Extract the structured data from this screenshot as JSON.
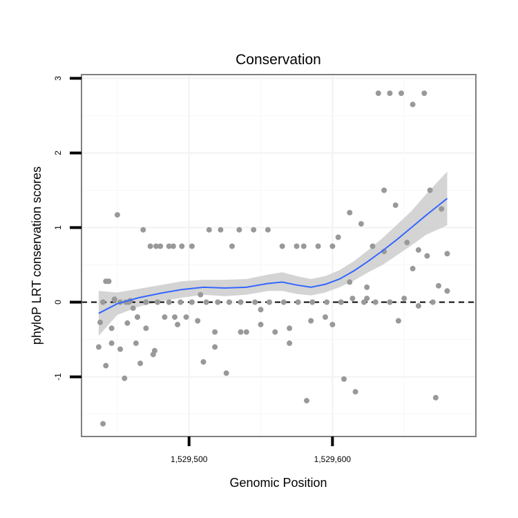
{
  "chart_data": {
    "type": "scatter",
    "title": "Conservation",
    "xlabel": "Genomic Position",
    "ylabel": "phyloP LRT conservation scores",
    "xlim": [
      1529425,
      1529700
    ],
    "ylim": [
      -1.8,
      3.05
    ],
    "xticks": [
      1529500,
      1529600
    ],
    "xtick_labels": [
      "1,529,500",
      "1,529,600"
    ],
    "yticks": [
      -1,
      0,
      1,
      2,
      3
    ],
    "ytick_labels": [
      "-1",
      "0",
      "1",
      "2",
      "3"
    ],
    "grid": true,
    "reference_line": {
      "y": 0,
      "style": "dashed"
    },
    "colors": {
      "points": "#999999",
      "smooth": "#3366ff",
      "band": "#cccccc",
      "border": "#7f7f7f"
    },
    "series": [
      {
        "type": "points",
        "x": [
          1529437,
          1529438,
          1529440,
          1529442,
          1529444,
          1529446,
          1529448,
          1529450,
          1529452,
          1529455,
          1529457,
          1529459,
          1529461,
          1529463,
          1529466,
          1529468,
          1529470,
          1529473,
          1529475,
          1529477,
          1529480,
          1529483,
          1529486,
          1529489,
          1529492,
          1529495,
          1529498,
          1529502,
          1529506,
          1529510,
          1529514,
          1529518,
          1529522,
          1529526,
          1529530,
          1529535,
          1529540,
          1529545,
          1529550,
          1529555,
          1529560,
          1529565,
          1529570,
          1529575,
          1529580,
          1529585,
          1529590,
          1529595,
          1529600,
          1529604,
          1529608,
          1529612,
          1529616,
          1529620,
          1529624,
          1529628,
          1529632,
          1529636,
          1529640,
          1529644,
          1529648,
          1529652,
          1529656,
          1529660,
          1529664,
          1529668,
          1529672,
          1529676,
          1529680,
          1529440,
          1529446,
          1529452,
          1529458,
          1529464,
          1529470,
          1529478,
          1529486,
          1529494,
          1529502,
          1529512,
          1529520,
          1529528,
          1529536,
          1529546,
          1529556,
          1529566,
          1529576,
          1529586,
          1529596,
          1529606,
          1529614,
          1529622,
          1529630,
          1529640,
          1529650,
          1529660,
          1529670,
          1529680,
          1529442,
          1529448,
          1529456,
          1529464,
          1529476,
          1529490,
          1529508,
          1529518,
          1529536,
          1529550,
          1529570,
          1529582,
          1529600,
          1529612,
          1529624,
          1529636,
          1529646,
          1529656,
          1529666,
          1529674
        ],
        "y": [
          -0.6,
          -0.27,
          -1.63,
          -0.85,
          0.28,
          -0.55,
          0.04,
          1.17,
          -0.63,
          -1.02,
          -0.28,
          0.02,
          -0.08,
          -0.55,
          -0.82,
          0.97,
          -0.35,
          0.75,
          -0.7,
          0.75,
          0.75,
          -0.2,
          0.75,
          0.75,
          -0.3,
          0.75,
          -0.2,
          0.75,
          -0.25,
          -0.8,
          0.97,
          -0.4,
          0.97,
          -0.95,
          0.75,
          0.97,
          -0.4,
          0.97,
          -0.3,
          0.97,
          -0.4,
          0.75,
          -0.55,
          0.75,
          0.75,
          -0.25,
          0.75,
          -0.2,
          0.75,
          0.87,
          -1.03,
          1.2,
          -1.2,
          1.05,
          0.05,
          0.75,
          2.8,
          1.5,
          2.8,
          1.3,
          2.8,
          0.8,
          2.65,
          0.7,
          2.8,
          1.5,
          -1.28,
          1.25,
          0.65,
          0.0,
          -0.35,
          0.0,
          0.0,
          -0.2,
          0.0,
          0.0,
          0.0,
          0.0,
          0.0,
          0.0,
          0.0,
          0.0,
          0.0,
          0.0,
          0.0,
          0.0,
          0.0,
          0.0,
          0.0,
          0.0,
          0.05,
          0.0,
          0.0,
          0.0,
          0.05,
          -0.05,
          0.0,
          0.15,
          0.28,
          0.03,
          0.0,
          -0.2,
          -0.65,
          -0.2,
          0.1,
          -0.6,
          -0.4,
          -0.1,
          -0.35,
          -1.32,
          -0.3,
          0.27,
          0.2,
          0.68,
          -0.25,
          0.45,
          0.62,
          0.22
        ]
      },
      {
        "type": "smooth",
        "x": [
          1529437,
          1529450,
          1529465,
          1529480,
          1529495,
          1529510,
          1529525,
          1529540,
          1529555,
          1529565,
          1529575,
          1529585,
          1529595,
          1529605,
          1529615,
          1529625,
          1529635,
          1529645,
          1529655,
          1529665,
          1529680
        ],
        "y": [
          -0.15,
          -0.02,
          0.06,
          0.12,
          0.17,
          0.2,
          0.19,
          0.2,
          0.25,
          0.27,
          0.23,
          0.2,
          0.24,
          0.31,
          0.42,
          0.55,
          0.69,
          0.84,
          1.0,
          1.16,
          1.39
        ],
        "band_lower": [
          -0.45,
          -0.17,
          -0.06,
          0.01,
          0.06,
          0.1,
          0.08,
          0.1,
          0.15,
          0.15,
          0.11,
          0.09,
          0.13,
          0.2,
          0.29,
          0.4,
          0.5,
          0.63,
          0.76,
          0.9,
          1.03
        ],
        "band_upper": [
          0.15,
          0.13,
          0.18,
          0.23,
          0.28,
          0.3,
          0.3,
          0.31,
          0.37,
          0.4,
          0.35,
          0.31,
          0.35,
          0.43,
          0.55,
          0.7,
          0.86,
          1.04,
          1.22,
          1.44,
          1.75
        ]
      }
    ]
  }
}
